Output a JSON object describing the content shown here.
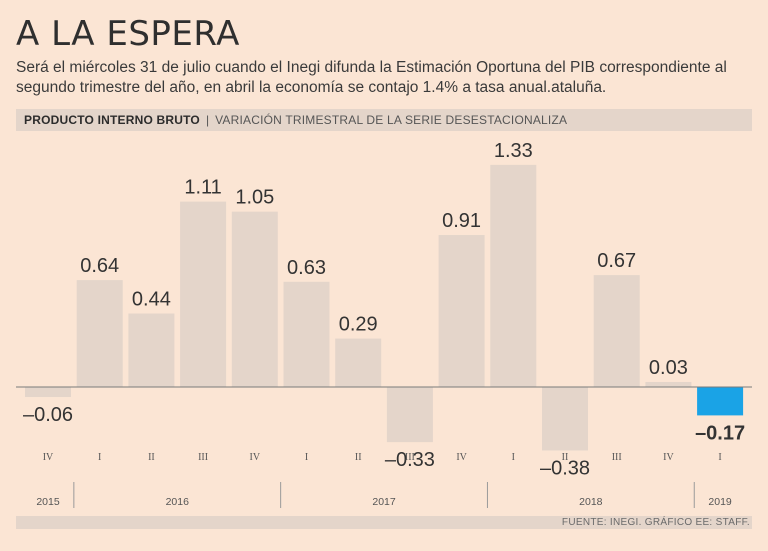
{
  "header": {
    "title": "A LA ESPERA",
    "subtitle": "Será el miércoles 31 de julio cuando el Inegi difunda la Estimación Oportuna del PIB  correspondiente al segundo trimestre del año, en abril la economía se contajo 1.4% a tasa anual.ataluña."
  },
  "band": {
    "label": "PRODUCTO INTERNO BRUTO",
    "separator": "|",
    "sublabel": "VARIACIÓN TRIMESTRAL DE LA SERIE DESESTACIONALIZA"
  },
  "footer": {
    "source": "FUENTE: INEGI. GRÁFICO EE: STAFF."
  },
  "colors": {
    "bar": "#e4d5ca",
    "highlight": "#1aa3e6",
    "text": "#3c3c3c"
  },
  "chart_data": {
    "type": "bar",
    "categories": [
      "IV",
      "I",
      "II",
      "III",
      "IV",
      "I",
      "II",
      "III",
      "IV",
      "I",
      "II",
      "III",
      "IV",
      "I"
    ],
    "values": [
      -0.06,
      0.64,
      0.44,
      1.11,
      1.05,
      0.63,
      0.29,
      -0.33,
      0.91,
      1.33,
      -0.38,
      0.67,
      0.03,
      -0.17
    ],
    "value_labels": [
      "–0.06",
      "0.64",
      "0.44",
      "1.11",
      "1.05",
      "0.63",
      "0.29",
      "–0.33",
      "0.91",
      "1.33",
      "–0.38",
      "0.67",
      "0.03",
      "–0.17"
    ],
    "highlight_index": 13,
    "years": [
      {
        "label": "2015",
        "start": 0,
        "end": 0
      },
      {
        "label": "2016",
        "start": 1,
        "end": 4
      },
      {
        "label": "2017",
        "start": 5,
        "end": 8
      },
      {
        "label": "2018",
        "start": 9,
        "end": 12
      },
      {
        "label": "2019",
        "start": 13,
        "end": 13
      }
    ],
    "ylim": [
      -0.45,
      1.45
    ]
  }
}
